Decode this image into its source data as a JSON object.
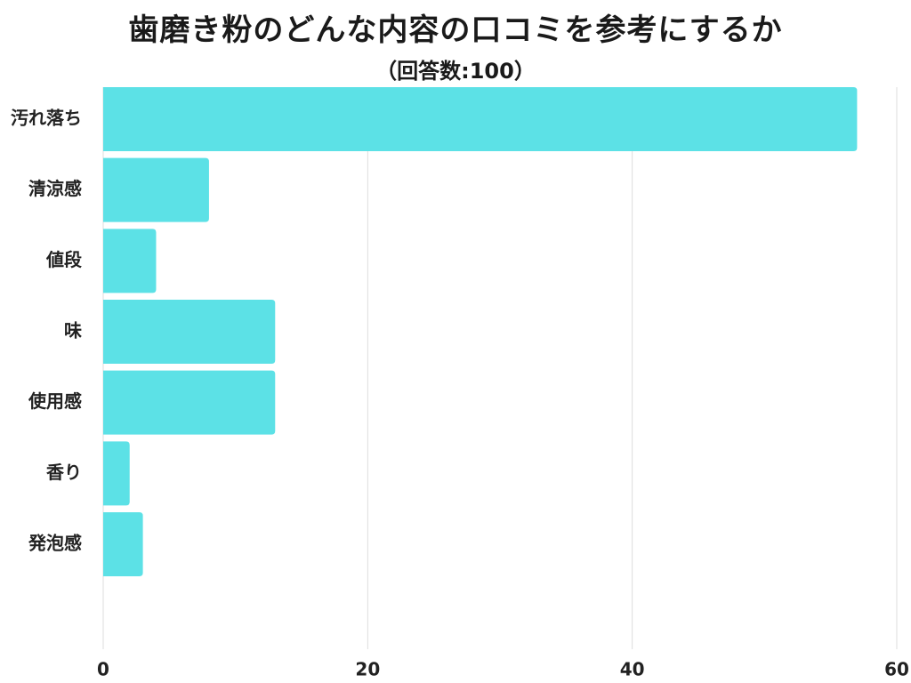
{
  "chart_data": {
    "type": "bar",
    "orientation": "horizontal",
    "title": "歯磨き粉のどんな内容の口コミを参考にするか",
    "subtitle": "（回答数:100）",
    "categories": [
      "汚れ落ち",
      "清涼感",
      "値段",
      "味",
      "使用感",
      "香り",
      "発泡感"
    ],
    "values": [
      57,
      8,
      4,
      13,
      13,
      2,
      3
    ],
    "xlim": [
      0,
      60
    ],
    "xticks": [
      0,
      20,
      40,
      60
    ],
    "grid": true,
    "bar_color": "#5ce1e6",
    "grid_color": "#dddddd",
    "text_color": "#222222"
  }
}
